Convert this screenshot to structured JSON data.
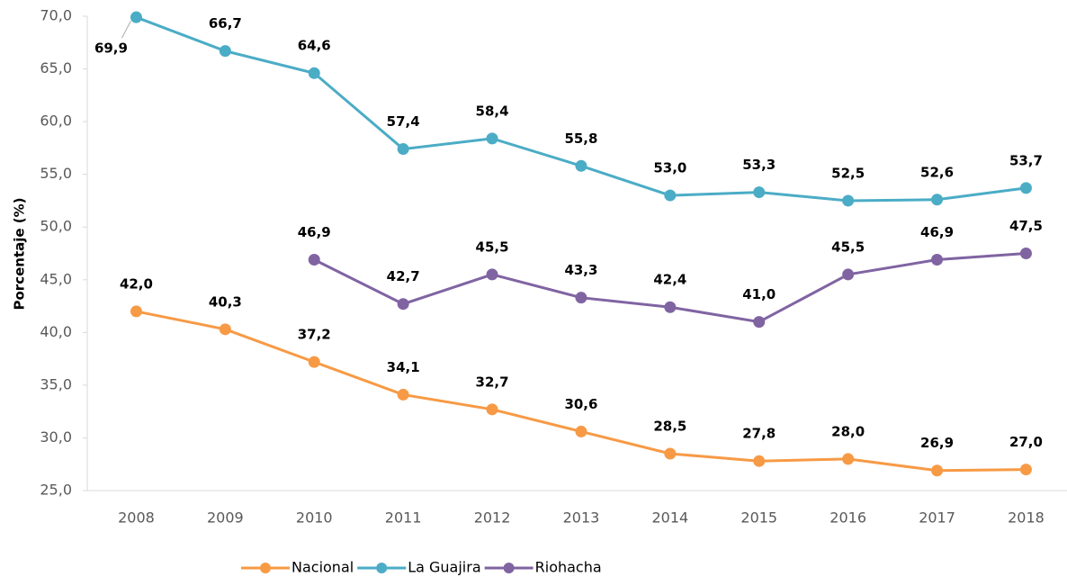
{
  "chart_data": {
    "type": "line",
    "y_label": "Porcentaje (%)",
    "categories": [
      "2008",
      "2009",
      "2010",
      "2011",
      "2012",
      "2013",
      "2014",
      "2015",
      "2016",
      "2017",
      "2018"
    ],
    "series": [
      {
        "name": "Nacional",
        "color": "#f79a45",
        "values": [
          42.0,
          40.3,
          37.2,
          34.1,
          32.7,
          30.6,
          28.5,
          27.8,
          28.0,
          26.9,
          27.0
        ],
        "value_labels": [
          "42,0",
          "40,3",
          "37,2",
          "34,1",
          "32,7",
          "30,6",
          "28,5",
          "27,8",
          "28,0",
          "26,9",
          "27,0"
        ]
      },
      {
        "name": "La Guajira",
        "color": "#4bacc6",
        "values": [
          69.9,
          66.7,
          64.6,
          57.4,
          58.4,
          55.8,
          53.0,
          53.3,
          52.5,
          52.6,
          53.7
        ],
        "value_labels": [
          "69,9",
          "66,7",
          "64,6",
          "57,4",
          "58,4",
          "55,8",
          "53,0",
          "53,3",
          "52,5",
          "52,6",
          "53,7"
        ]
      },
      {
        "name": "Riohacha",
        "color": "#8064a2",
        "values": [
          null,
          null,
          46.9,
          42.7,
          45.5,
          43.3,
          42.4,
          41.0,
          45.5,
          46.9,
          47.5
        ],
        "value_labels": [
          null,
          null,
          "46,9",
          "42,7",
          "45,5",
          "43,3",
          "42,4",
          "41,0",
          "45,5",
          "46,9",
          "47,5"
        ]
      }
    ],
    "ylim": [
      25,
      70
    ],
    "yticks": [
      {
        "value": 25,
        "label": "25,0"
      },
      {
        "value": 30,
        "label": "30,0"
      },
      {
        "value": 35,
        "label": "35,0"
      },
      {
        "value": 40,
        "label": "40,0"
      },
      {
        "value": 45,
        "label": "45,0"
      },
      {
        "value": 50,
        "label": "50,0"
      },
      {
        "value": 55,
        "label": "55,0"
      },
      {
        "value": 60,
        "label": "60,0"
      },
      {
        "value": 65,
        "label": "65,0"
      },
      {
        "value": 70,
        "label": "70,0"
      }
    ],
    "legend": "bottom"
  }
}
